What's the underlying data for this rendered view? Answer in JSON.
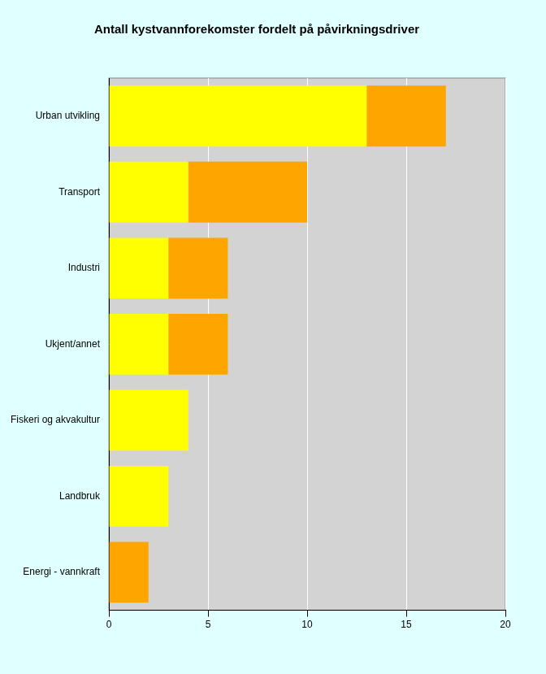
{
  "chart_data": {
    "type": "bar",
    "title": "Antall kystvannforekomster fordelt på påvirkningsdriver",
    "orientation": "horizontal",
    "stacked": true,
    "grid": true,
    "categories": [
      "Urban utvikling",
      "Transport",
      "Industri",
      "Ukjent/annet",
      "Fiskeri og akvakultur",
      "Landbruk",
      "Energi - vannkraft"
    ],
    "series": [
      {
        "color": "#ffff00",
        "values": [
          13,
          4,
          3,
          3,
          4,
          3,
          0
        ]
      },
      {
        "color": "#ffa500",
        "values": [
          4,
          6,
          3,
          3,
          0,
          0,
          2
        ]
      }
    ],
    "xlim": [
      0,
      20
    ],
    "xticks": [
      0,
      5,
      10,
      15,
      20
    ]
  }
}
